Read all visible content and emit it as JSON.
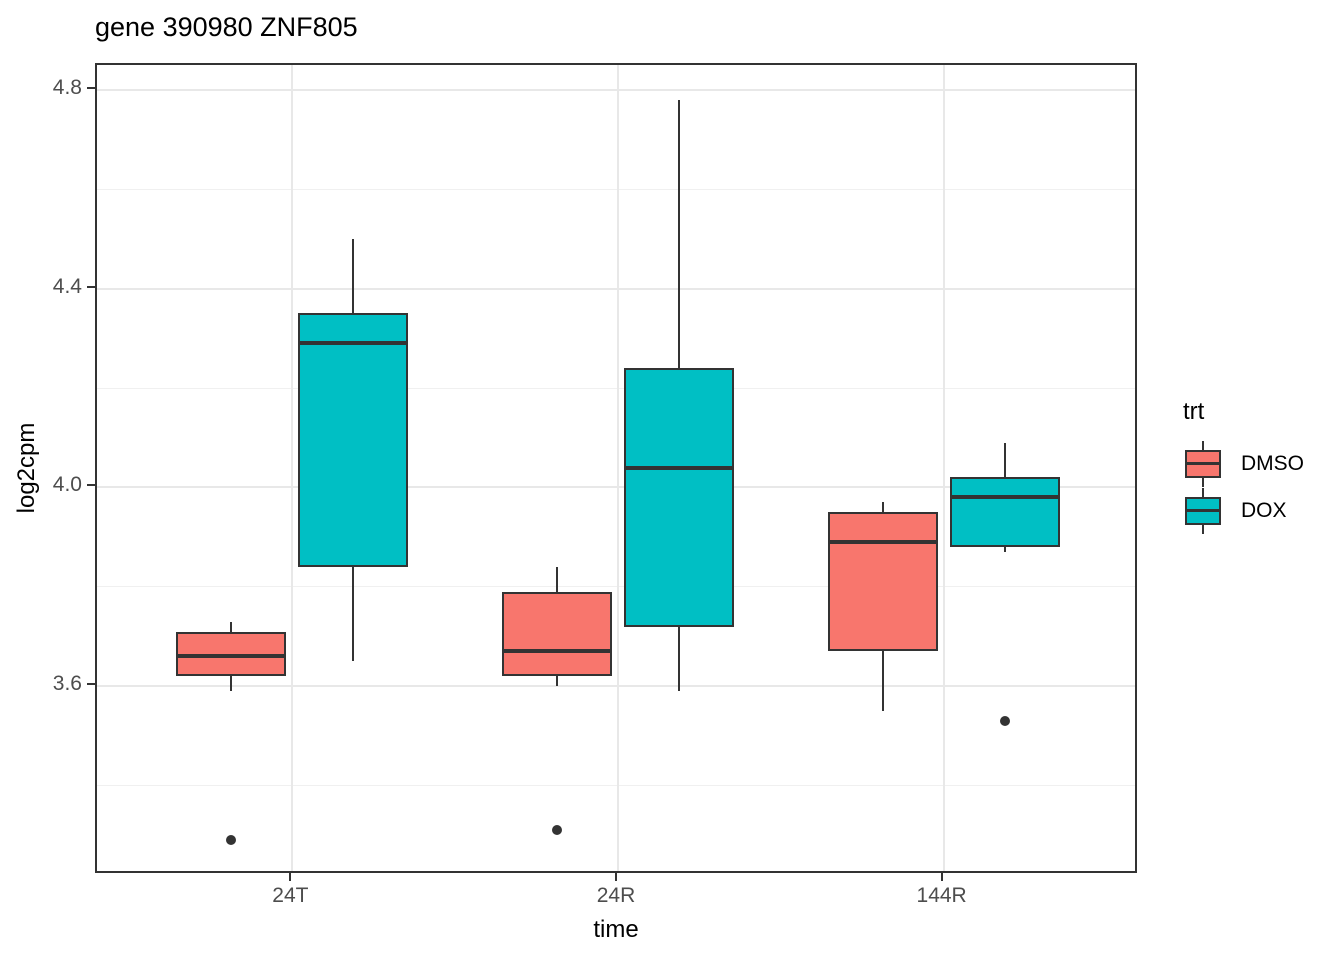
{
  "title": "gene 390980 ZNF805",
  "colors": {
    "dmso": "#F8766D",
    "dox": "#00BFC4",
    "box_stroke": "#333333",
    "grid_major": "#e8e8e8",
    "grid_minor": "#f0f0f0",
    "panel_border": "#333333",
    "tick_label": "#4d4d4d",
    "axis_title": "#000000"
  },
  "chart_data": {
    "type": "boxplot",
    "title": "gene 390980 ZNF805",
    "xlabel": "time",
    "ylabel": "log2cpm",
    "categories": [
      "24T",
      "24R",
      "144R"
    ],
    "y_ticks": [
      3.6,
      4.0,
      4.4,
      4.8
    ],
    "y_tick_labels": [
      "3.6",
      "4.0",
      "4.4",
      "4.8"
    ],
    "y_minor_ticks": [
      3.4,
      3.8,
      4.2,
      4.6
    ],
    "ylim": [
      3.22,
      4.85
    ],
    "grid": true,
    "legend_title": "trt",
    "legend_position": "right",
    "series": [
      {
        "name": "DMSO",
        "color": "#F8766D",
        "boxes": [
          {
            "category": "24T",
            "low": 3.59,
            "q1": 3.62,
            "median": 3.66,
            "q3": 3.71,
            "high": 3.73,
            "outliers": [
              3.29
            ]
          },
          {
            "category": "24R",
            "low": 3.6,
            "q1": 3.62,
            "median": 3.67,
            "q3": 3.79,
            "high": 3.84,
            "outliers": [
              3.31
            ]
          },
          {
            "category": "144R",
            "low": 3.55,
            "q1": 3.67,
            "median": 3.89,
            "q3": 3.95,
            "high": 3.97,
            "outliers": []
          }
        ]
      },
      {
        "name": "DOX",
        "color": "#00BFC4",
        "boxes": [
          {
            "category": "24T",
            "low": 3.65,
            "q1": 3.84,
            "median": 4.29,
            "q3": 4.35,
            "high": 4.5,
            "outliers": []
          },
          {
            "category": "24R",
            "low": 3.59,
            "q1": 3.72,
            "median": 4.04,
            "q3": 4.24,
            "high": 4.78,
            "outliers": []
          },
          {
            "category": "144R",
            "low": 3.87,
            "q1": 3.88,
            "median": 3.98,
            "q3": 4.02,
            "high": 4.09,
            "outliers": [
              3.53
            ]
          }
        ]
      }
    ]
  }
}
